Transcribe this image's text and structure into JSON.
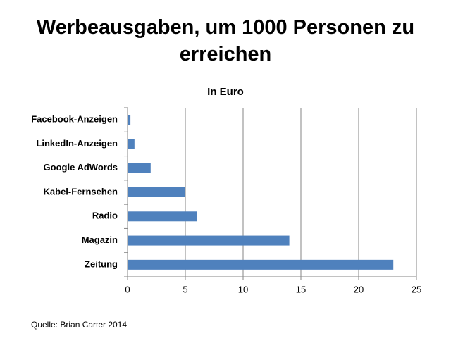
{
  "chart_data": {
    "type": "bar",
    "orientation": "horizontal",
    "title": "Werbeausgaben, um 1000 Personen zu erreichen",
    "subtitle": "In Euro",
    "source": "Quelle: Brian Carter 2014",
    "categories": [
      "Facebook-Anzeigen",
      "LinkedIn-Anzeigen",
      "Google AdWords",
      "Kabel-Fernsehen",
      "Radio",
      "Magazin",
      "Zeitung"
    ],
    "values": [
      0.25,
      0.6,
      2,
      5,
      6,
      14,
      23
    ],
    "color": "#4f81bd",
    "xlim": [
      0,
      25
    ],
    "xticks": [
      0,
      5,
      10,
      15,
      20,
      25
    ],
    "grid": true
  }
}
